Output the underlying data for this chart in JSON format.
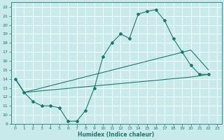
{
  "xlabel": "Humidex (Indice chaleur)",
  "bg_color": "#c8eaea",
  "grid_color": "#ffffff",
  "line_color": "#1a7a6e",
  "xlim": [
    -0.5,
    23.5
  ],
  "ylim": [
    9,
    22.5
  ],
  "xticks": [
    0,
    1,
    2,
    3,
    4,
    5,
    6,
    7,
    8,
    9,
    10,
    11,
    12,
    13,
    14,
    15,
    16,
    17,
    18,
    19,
    20,
    21,
    22,
    23
  ],
  "yticks": [
    9,
    10,
    11,
    12,
    13,
    14,
    15,
    16,
    17,
    18,
    19,
    20,
    21,
    22
  ],
  "line1_x": [
    0,
    1,
    2,
    3,
    4,
    5,
    6,
    7,
    8,
    9,
    10,
    11,
    12,
    13,
    14,
    15,
    16,
    17,
    18,
    19,
    20,
    21,
    22
  ],
  "line1_y": [
    14,
    12.5,
    11.5,
    11,
    11,
    10.8,
    9.3,
    9.3,
    10.5,
    13.0,
    16.5,
    18.0,
    19.0,
    18.5,
    21.2,
    21.5,
    21.7,
    20.5,
    18.5,
    17.0,
    15.5,
    14.5,
    14.5
  ],
  "line2_x": [
    0,
    1,
    20,
    22
  ],
  "line2_y": [
    14,
    12.5,
    17.2,
    15.0
  ],
  "line3_x": [
    0,
    1,
    20,
    22
  ],
  "line3_y": [
    14,
    12.5,
    14.2,
    14.5
  ]
}
